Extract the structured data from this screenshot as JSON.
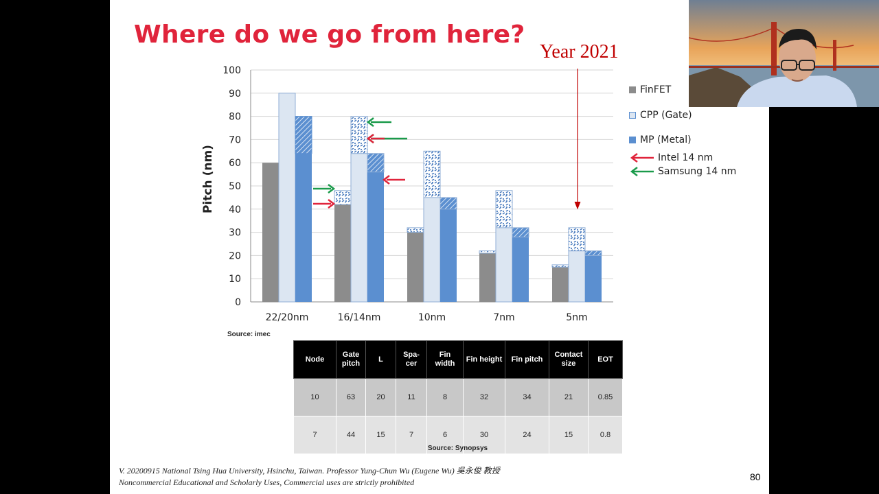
{
  "slide": {
    "title": "Where do we go from here?",
    "year_label": "Year 2021",
    "page_number": "80",
    "footer_line1": "V. 20200915 National Tsing Hua University, Hsinchu, Taiwan. Professor Yung-Chun Wu (Eugene Wu) 吳永俊 教授",
    "footer_line2": "Noncommercial Educational and Scholarly Uses, Commercial uses are strictly prohibited"
  },
  "legend": {
    "finfet": "FinFET",
    "cpp": "CPP (Gate)",
    "mp": "MP (Metal)",
    "intel": "Intel 14 nm",
    "samsung": "Samsung 14 nm"
  },
  "chart_data": {
    "type": "bar",
    "title": "",
    "xlabel": "",
    "ylabel": "Pitch (nm)",
    "ylim": [
      0,
      100
    ],
    "yticks": [
      0,
      10,
      20,
      30,
      40,
      50,
      60,
      70,
      80,
      90,
      100
    ],
    "categories": [
      "22/20nm",
      "16/14nm",
      "10nm",
      "7nm",
      "5nm"
    ],
    "series": [
      {
        "name": "FinFET",
        "values": [
          60,
          42,
          30,
          21,
          15
        ],
        "upper": [
          60,
          48,
          32,
          22,
          16
        ],
        "color": "#8c8c8c"
      },
      {
        "name": "CPP (Gate)",
        "values": [
          90,
          64,
          45,
          32,
          22
        ],
        "upper": [
          90,
          80,
          65,
          48,
          32
        ],
        "color": "#dce6f2"
      },
      {
        "name": "MP (Metal)",
        "values": [
          64,
          56,
          40,
          28,
          20
        ],
        "upper": [
          80,
          64,
          45,
          32,
          22
        ],
        "color": "#5b8fd0"
      }
    ],
    "grid": "horizontal",
    "legend_position": "right",
    "source": "Source: imec"
  },
  "table": {
    "headers": [
      "Node",
      "Gate pitch",
      "L",
      "Spa-cer",
      "Fin width",
      "Fin height",
      "Fin pitch",
      "Contact size",
      "EOT"
    ],
    "rows": [
      [
        "10",
        "63",
        "20",
        "11",
        "8",
        "32",
        "34",
        "21",
        "0.85"
      ],
      [
        "7",
        "44",
        "15",
        "7",
        "6",
        "30",
        "24",
        "15",
        "0.8"
      ]
    ],
    "source": "Source: Synopsys"
  },
  "colors": {
    "title": "#e0243b",
    "year": "#c00000",
    "intel_arrow": "#e0243b",
    "samsung_arrow": "#1a9a4a"
  }
}
